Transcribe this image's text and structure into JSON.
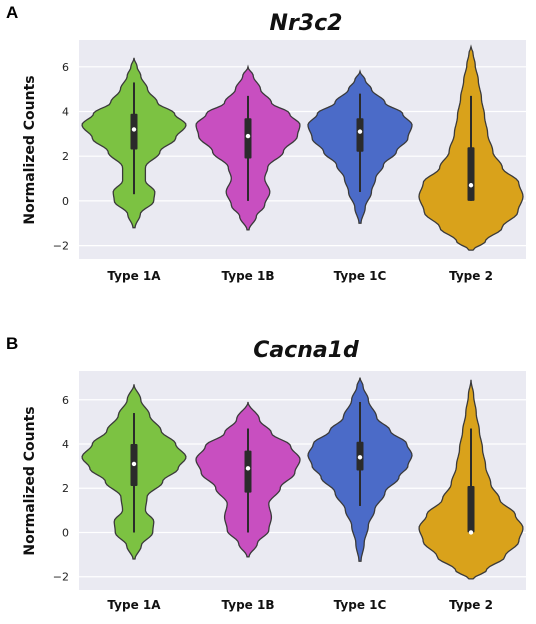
{
  "chart_data": [
    {
      "panel": "A",
      "type": "violin",
      "title": "Nr3c2",
      "xlabel": "",
      "ylabel": "Normalized Counts",
      "ylim": [
        -2.6,
        7.2
      ],
      "yticks": [
        -2,
        0,
        2,
        4,
        6
      ],
      "grid": true,
      "categories": [
        "Type 1A",
        "Type 1B",
        "Type 1C",
        "Type 2"
      ],
      "colors": [
        "#7cc242",
        "#c84fc0",
        "#4b6bc8",
        "#d9a21b"
      ],
      "series": [
        {
          "category": "Type 1A",
          "y_min": -1.2,
          "y_max": 6.4,
          "whisker_low": 0.3,
          "whisker_high": 5.3,
          "q1": 2.3,
          "median": 3.2,
          "q3": 3.9,
          "density": [
            [
              -1.2,
              0.02
            ],
            [
              -0.6,
              0.12
            ],
            [
              0.0,
              0.38
            ],
            [
              0.4,
              0.4
            ],
            [
              0.9,
              0.22
            ],
            [
              1.5,
              0.22
            ],
            [
              2.2,
              0.5
            ],
            [
              2.8,
              0.8
            ],
            [
              3.4,
              1.0
            ],
            [
              3.9,
              0.78
            ],
            [
              4.4,
              0.45
            ],
            [
              5.0,
              0.26
            ],
            [
              5.6,
              0.13
            ],
            [
              6.0,
              0.06
            ],
            [
              6.4,
              0.0
            ]
          ]
        },
        {
          "category": "Type 1B",
          "y_min": -1.3,
          "y_max": 6.0,
          "whisker_low": 0.0,
          "whisker_high": 4.7,
          "q1": 1.9,
          "median": 2.9,
          "q3": 3.7,
          "density": [
            [
              -1.3,
              0.02
            ],
            [
              -0.7,
              0.16
            ],
            [
              -0.2,
              0.32
            ],
            [
              0.4,
              0.42
            ],
            [
              1.0,
              0.32
            ],
            [
              1.5,
              0.38
            ],
            [
              2.2,
              0.68
            ],
            [
              2.9,
              0.95
            ],
            [
              3.4,
              1.0
            ],
            [
              3.9,
              0.8
            ],
            [
              4.4,
              0.45
            ],
            [
              5.0,
              0.24
            ],
            [
              5.6,
              0.1
            ],
            [
              6.0,
              0.0
            ]
          ]
        },
        {
          "category": "Type 1C",
          "y_min": -1.0,
          "y_max": 5.8,
          "whisker_low": 0.4,
          "whisker_high": 4.8,
          "q1": 2.2,
          "median": 3.1,
          "q3": 3.7,
          "density": [
            [
              -1.0,
              0.02
            ],
            [
              -0.3,
              0.1
            ],
            [
              0.4,
              0.22
            ],
            [
              1.0,
              0.3
            ],
            [
              1.6,
              0.45
            ],
            [
              2.2,
              0.7
            ],
            [
              2.8,
              0.92
            ],
            [
              3.4,
              1.0
            ],
            [
              3.9,
              0.82
            ],
            [
              4.4,
              0.48
            ],
            [
              5.0,
              0.22
            ],
            [
              5.4,
              0.1
            ],
            [
              5.8,
              0.0
            ]
          ]
        },
        {
          "category": "Type 2",
          "y_min": -2.2,
          "y_max": 6.9,
          "whisker_low": 0.0,
          "whisker_high": 4.7,
          "q1": 0.0,
          "median": 0.7,
          "q3": 2.4,
          "density": [
            [
              -2.2,
              0.04
            ],
            [
              -1.8,
              0.28
            ],
            [
              -1.2,
              0.6
            ],
            [
              -0.5,
              0.9
            ],
            [
              0.2,
              1.0
            ],
            [
              0.8,
              0.92
            ],
            [
              1.5,
              0.6
            ],
            [
              2.2,
              0.42
            ],
            [
              3.0,
              0.32
            ],
            [
              3.8,
              0.26
            ],
            [
              4.6,
              0.2
            ],
            [
              5.4,
              0.14
            ],
            [
              6.1,
              0.08
            ],
            [
              6.6,
              0.04
            ],
            [
              6.9,
              0.0
            ]
          ]
        }
      ]
    },
    {
      "panel": "B",
      "type": "violin",
      "title": "Cacna1d",
      "xlabel": "",
      "ylabel": "Normalized Counts",
      "ylim": [
        -2.6,
        7.3
      ],
      "yticks": [
        -2,
        0,
        2,
        4,
        6
      ],
      "grid": true,
      "categories": [
        "Type 1A",
        "Type 1B",
        "Type 1C",
        "Type 2"
      ],
      "colors": [
        "#7cc242",
        "#c84fc0",
        "#4b6bc8",
        "#d9a21b"
      ],
      "series": [
        {
          "category": "Type 1A",
          "y_min": -1.2,
          "y_max": 6.7,
          "whisker_low": 0.0,
          "whisker_high": 5.4,
          "q1": 2.1,
          "median": 3.1,
          "q3": 4.0,
          "density": [
            [
              -1.2,
              0.02
            ],
            [
              -0.6,
              0.14
            ],
            [
              0.0,
              0.36
            ],
            [
              0.5,
              0.38
            ],
            [
              1.0,
              0.22
            ],
            [
              1.6,
              0.25
            ],
            [
              2.3,
              0.55
            ],
            [
              2.9,
              0.85
            ],
            [
              3.4,
              1.0
            ],
            [
              4.0,
              0.8
            ],
            [
              4.6,
              0.52
            ],
            [
              5.3,
              0.3
            ],
            [
              6.0,
              0.13
            ],
            [
              6.7,
              0.0
            ]
          ]
        },
        {
          "category": "Type 1B",
          "y_min": -1.1,
          "y_max": 5.9,
          "whisker_low": 0.0,
          "whisker_high": 4.7,
          "q1": 1.8,
          "median": 2.9,
          "q3": 3.7,
          "density": [
            [
              -1.1,
              0.02
            ],
            [
              -0.5,
              0.18
            ],
            [
              0.1,
              0.4
            ],
            [
              0.7,
              0.45
            ],
            [
              1.3,
              0.4
            ],
            [
              2.0,
              0.62
            ],
            [
              2.7,
              0.9
            ],
            [
              3.3,
              1.0
            ],
            [
              3.9,
              0.82
            ],
            [
              4.5,
              0.45
            ],
            [
              5.1,
              0.22
            ],
            [
              5.9,
              0.0
            ]
          ]
        },
        {
          "category": "Type 1C",
          "y_min": -1.3,
          "y_max": 7.0,
          "whisker_low": 1.2,
          "whisker_high": 5.9,
          "q1": 2.8,
          "median": 3.4,
          "q3": 4.1,
          "density": [
            [
              -1.3,
              0.02
            ],
            [
              -0.5,
              0.08
            ],
            [
              0.3,
              0.16
            ],
            [
              1.0,
              0.28
            ],
            [
              1.8,
              0.48
            ],
            [
              2.5,
              0.75
            ],
            [
              3.0,
              0.92
            ],
            [
              3.5,
              1.0
            ],
            [
              4.0,
              0.9
            ],
            [
              4.6,
              0.58
            ],
            [
              5.2,
              0.32
            ],
            [
              6.0,
              0.16
            ],
            [
              6.6,
              0.06
            ],
            [
              7.0,
              0.0
            ]
          ]
        },
        {
          "category": "Type 2",
          "y_min": -2.1,
          "y_max": 6.9,
          "whisker_low": 0.0,
          "whisker_high": 4.7,
          "q1": 0.0,
          "median": 0.0,
          "q3": 2.1,
          "density": [
            [
              -2.1,
              0.04
            ],
            [
              -1.7,
              0.3
            ],
            [
              -1.1,
              0.65
            ],
            [
              -0.4,
              0.92
            ],
            [
              0.2,
              1.0
            ],
            [
              0.8,
              0.85
            ],
            [
              1.5,
              0.55
            ],
            [
              2.2,
              0.38
            ],
            [
              3.0,
              0.28
            ],
            [
              3.8,
              0.22
            ],
            [
              4.6,
              0.16
            ],
            [
              5.4,
              0.1
            ],
            [
              6.2,
              0.05
            ],
            [
              6.9,
              0.0
            ]
          ]
        }
      ]
    }
  ]
}
